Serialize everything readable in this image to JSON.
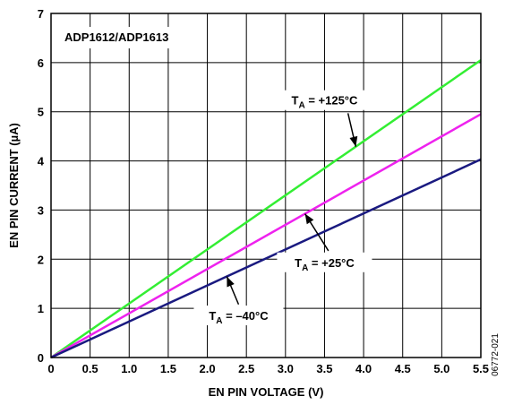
{
  "chart_data": {
    "type": "line",
    "title": "ADP1612/ADP1613",
    "xlabel": "EN PIN VOLTAGE (V)",
    "ylabel": "EN PIN CURRENT (µA)",
    "xlim": [
      0,
      5.5
    ],
    "ylim": [
      0,
      7
    ],
    "x_ticks": [
      "0",
      "0.5",
      "1.0",
      "1.5",
      "2.0",
      "2.5",
      "3.0",
      "3.5",
      "4.0",
      "4.5",
      "5.0",
      "5.5"
    ],
    "y_ticks": [
      "0",
      "1",
      "2",
      "3",
      "4",
      "5",
      "6",
      "7"
    ],
    "grid": true,
    "series": [
      {
        "name": "T_A = +125°C",
        "label_main": "T",
        "label_sub": "A",
        "label_rest": " = +125°C",
        "color": "#33ee33",
        "x": [
          0,
          5.5
        ],
        "y": [
          0,
          6.05
        ]
      },
      {
        "name": "T_A = +25°C",
        "label_main": "T",
        "label_sub": "A",
        "label_rest": " = +25°C",
        "color": "#ee22ee",
        "x": [
          0,
          5.5
        ],
        "y": [
          0,
          4.95
        ]
      },
      {
        "name": "T_A = –40°C",
        "label_main": "T",
        "label_sub": "A",
        "label_rest": " = –40°C",
        "color": "#1a1a80",
        "x": [
          0,
          5.5
        ],
        "y": [
          0,
          4.03
        ]
      }
    ],
    "figure_code": "06772-021"
  }
}
